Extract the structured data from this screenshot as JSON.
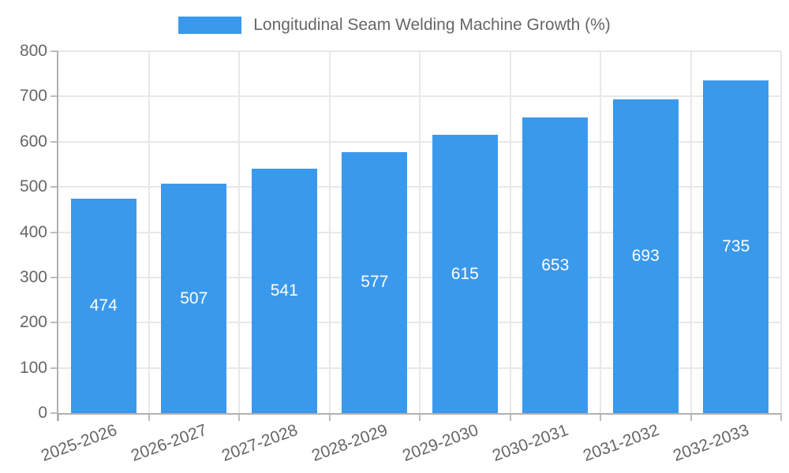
{
  "chart_data": {
    "type": "bar",
    "title": "",
    "legend_entries": [
      "Longitudinal Seam Welding Machine Growth (%)"
    ],
    "legend_position": "top",
    "categories": [
      "2025-2026",
      "2026-2027",
      "2027-2028",
      "2028-2029",
      "2029-2030",
      "2030-2031",
      "2031-2032",
      "2032-2033"
    ],
    "values": [
      474,
      507,
      541,
      577,
      615,
      653,
      693,
      735
    ],
    "xlabel": "",
    "ylabel": "",
    "ylim": [
      0,
      800
    ],
    "ytick_step": 100,
    "yticks": [
      0,
      100,
      200,
      300,
      400,
      500,
      600,
      700,
      800
    ],
    "grid": true,
    "colors": {
      "bar": "#3B99EC",
      "value_label": "#FFFFFF",
      "axis_text": "#666666",
      "grid_line": "#E8E8E8",
      "axis_line": "#B0B0B0",
      "tick_line": "#BDBDBD",
      "background": "#FFFFFF"
    }
  }
}
